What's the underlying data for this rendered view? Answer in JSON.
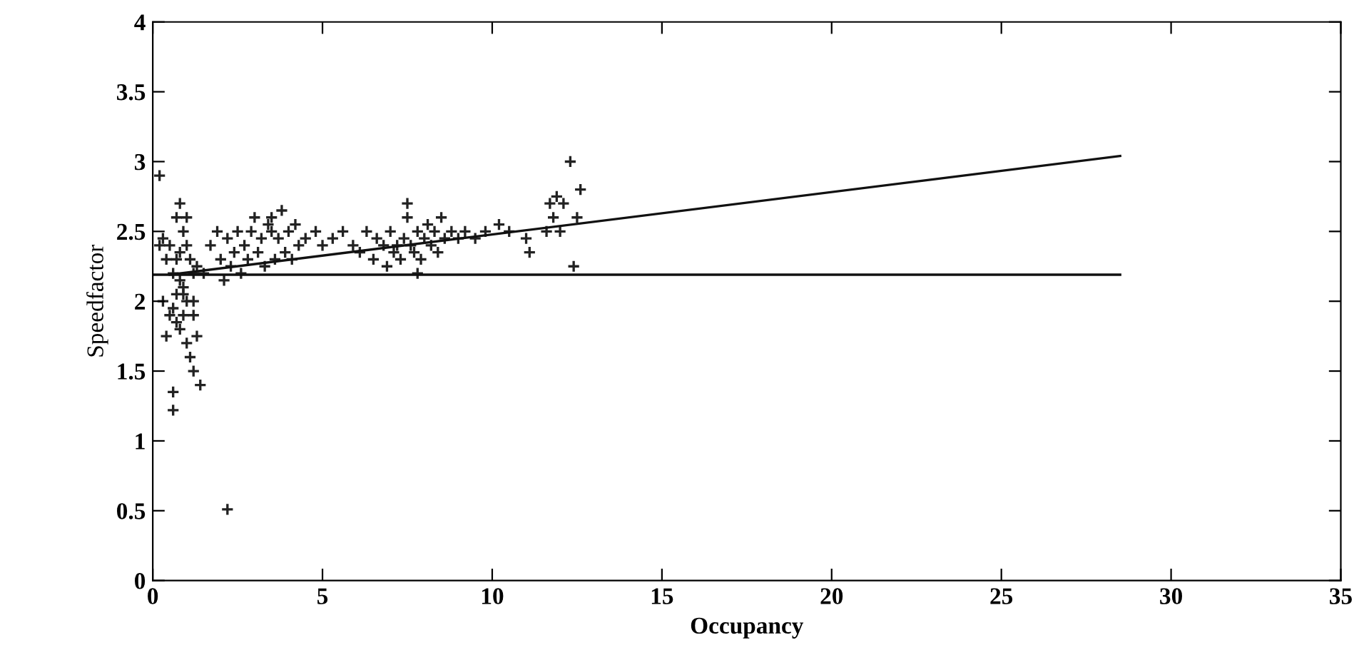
{
  "chart_data": {
    "type": "scatter",
    "xlabel": "Occupancy",
    "ylabel": "Speedfactor",
    "xlim": [
      0,
      35
    ],
    "xticks": [
      0,
      5,
      10,
      15,
      20,
      25,
      30,
      35
    ],
    "ylim": [
      0,
      4
    ],
    "yticks": [
      0,
      0.5,
      1,
      1.5,
      2,
      2.5,
      3,
      3.5,
      4
    ],
    "grid": false,
    "series": [
      {
        "marker": "cross",
        "color": "#222222",
        "x": [
          0.2,
          0.3,
          0.3,
          0.4,
          0.4,
          0.5,
          0.5,
          0.6,
          0.6,
          0.6,
          0.7,
          0.7,
          0.7,
          0.8,
          0.8,
          0.8,
          0.9,
          0.9,
          0.9,
          1.0,
          1.0,
          1.0,
          1.1,
          1.1,
          1.2,
          1.2,
          1.3,
          1.3,
          1.4,
          0.6,
          0.7,
          0.8,
          1.2,
          1.5,
          1.7,
          1.9,
          2.0,
          2.1,
          2.2,
          2.3,
          2.4,
          2.5,
          2.6,
          2.7,
          2.8,
          2.9,
          3.0,
          3.1,
          3.2,
          3.3,
          3.4,
          3.5,
          3.6,
          3.7,
          3.8,
          3.9,
          4.0,
          4.1,
          4.2,
          4.3,
          4.5,
          4.8,
          5.0,
          5.3,
          5.6,
          5.9,
          6.1,
          6.3,
          6.5,
          6.6,
          6.8,
          6.9,
          7.0,
          7.1,
          7.2,
          7.3,
          7.4,
          7.5,
          7.6,
          7.7,
          7.8,
          7.9,
          8.0,
          8.1,
          8.2,
          8.3,
          8.4,
          8.5,
          8.6,
          8.8,
          9.0,
          9.2,
          9.5,
          9.8,
          10.2,
          10.5,
          11.0,
          11.1,
          11.6,
          11.7,
          11.8,
          11.9,
          12.0,
          12.1,
          12.3,
          12.4,
          12.5,
          12.6,
          2.2,
          1.2,
          0.2,
          1.0,
          0.9,
          3.5,
          7.5,
          7.8
        ],
        "values": [
          2.9,
          2.45,
          2.0,
          2.3,
          1.75,
          2.4,
          1.9,
          2.2,
          1.95,
          1.35,
          2.3,
          2.05,
          1.85,
          2.7,
          2.15,
          1.8,
          2.5,
          2.1,
          1.9,
          2.4,
          2.0,
          1.7,
          2.3,
          1.6,
          2.2,
          1.9,
          2.25,
          1.75,
          1.4,
          1.22,
          2.6,
          2.35,
          2.0,
          2.2,
          2.4,
          2.5,
          2.3,
          2.15,
          2.45,
          2.25,
          2.35,
          2.5,
          2.2,
          2.4,
          2.3,
          2.5,
          2.6,
          2.35,
          2.45,
          2.25,
          2.55,
          2.5,
          2.3,
          2.45,
          2.65,
          2.35,
          2.5,
          2.3,
          2.55,
          2.4,
          2.45,
          2.5,
          2.4,
          2.45,
          2.5,
          2.4,
          2.35,
          2.5,
          2.3,
          2.45,
          2.4,
          2.25,
          2.5,
          2.35,
          2.4,
          2.3,
          2.45,
          2.6,
          2.4,
          2.35,
          2.5,
          2.3,
          2.45,
          2.55,
          2.4,
          2.5,
          2.35,
          2.6,
          2.45,
          2.5,
          2.45,
          2.5,
          2.45,
          2.5,
          2.55,
          2.5,
          2.45,
          2.35,
          2.5,
          2.7,
          2.6,
          2.75,
          2.5,
          2.7,
          3.0,
          2.25,
          2.6,
          2.8,
          0.51,
          1.5,
          2.4,
          2.6,
          2.05,
          2.6,
          2.7,
          2.2
        ]
      },
      {
        "type": "line",
        "color": "#111111",
        "x": [
          0.5,
          28.5
        ],
        "values": [
          2.19,
          3.04
        ]
      },
      {
        "type": "line",
        "color": "#111111",
        "x": [
          0,
          28.5
        ],
        "values": [
          2.19,
          2.19
        ]
      }
    ]
  }
}
